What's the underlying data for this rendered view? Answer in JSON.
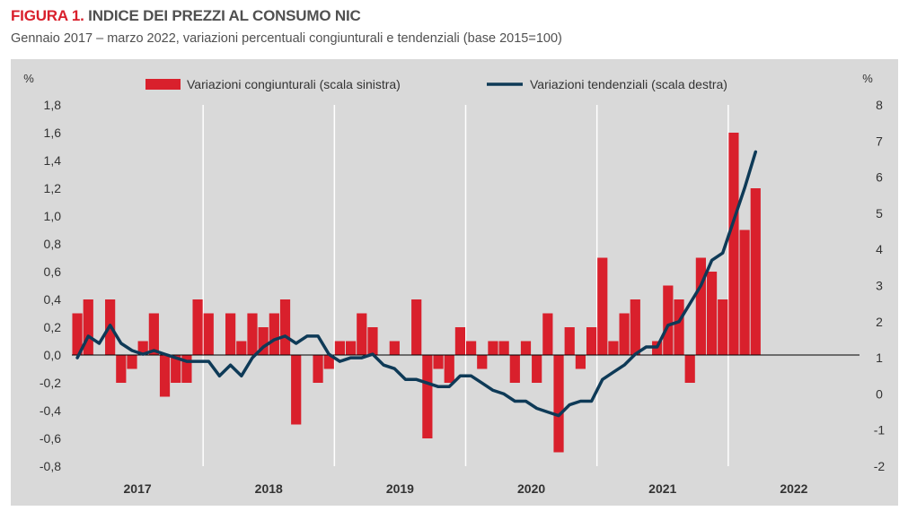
{
  "header": {
    "figure_label": "FIGURA 1.",
    "title": "INDICE DEI PREZZI AL CONSUMO NIC",
    "subtitle": "Gennaio 2017 – marzo 2022, variazioni percentuali congiunturali e tendenziali (base 2015=100)"
  },
  "colors": {
    "background": "#d9d9d9",
    "bars": "#d9202c",
    "line": "#0e3a57",
    "gridlines": "#ffffff",
    "text": "#333333"
  },
  "chart_data": {
    "type": "bar+line",
    "left_axis": {
      "unit": "%",
      "range": [
        -0.8,
        1.8
      ],
      "ticks": [
        "-0,8",
        "-0,6",
        "-0,4",
        "-0,2",
        "0,0",
        "0,2",
        "0,4",
        "0,6",
        "0,8",
        "1,0",
        "1,2",
        "1,4",
        "1,6",
        "1,8"
      ]
    },
    "right_axis": {
      "unit": "%",
      "range": [
        -2,
        8
      ],
      "ticks": [
        "-2",
        "-1",
        "0",
        "1",
        "2",
        "3",
        "4",
        "5",
        "6",
        "7",
        "8"
      ]
    },
    "x_categories": [
      "2017",
      "2018",
      "2019",
      "2020",
      "2021",
      "2022"
    ],
    "legend_position": "top",
    "grid": "vertical separators between years",
    "series": [
      {
        "name": "Variazioni congiunturali (scala sinistra)",
        "type": "bar",
        "axis": "left",
        "start": "2017-01",
        "values": [
          0.3,
          0.4,
          0.0,
          0.4,
          -0.2,
          -0.1,
          0.1,
          0.3,
          -0.3,
          -0.2,
          -0.2,
          0.4,
          0.3,
          0.0,
          0.3,
          0.1,
          0.3,
          0.2,
          0.3,
          0.4,
          -0.5,
          0.0,
          -0.2,
          -0.1,
          0.1,
          0.1,
          0.3,
          0.2,
          0.0,
          0.1,
          0.0,
          0.4,
          -0.6,
          -0.1,
          -0.2,
          0.2,
          0.1,
          -0.1,
          0.1,
          0.1,
          -0.2,
          0.1,
          -0.2,
          0.3,
          -0.7,
          0.2,
          -0.1,
          0.2,
          0.7,
          0.1,
          0.3,
          0.4,
          0.0,
          0.1,
          0.5,
          0.4,
          -0.2,
          0.7,
          0.6,
          0.4,
          1.6,
          0.9,
          1.2
        ]
      },
      {
        "name": "Variazioni tendenziali (scala destra)",
        "type": "line",
        "axis": "right",
        "start": "2017-01",
        "values": [
          1.0,
          1.6,
          1.4,
          1.9,
          1.4,
          1.2,
          1.1,
          1.2,
          1.1,
          1.0,
          0.9,
          0.9,
          0.9,
          0.5,
          0.8,
          0.5,
          1.0,
          1.3,
          1.5,
          1.6,
          1.4,
          1.6,
          1.6,
          1.1,
          0.9,
          1.0,
          1.0,
          1.1,
          0.8,
          0.7,
          0.4,
          0.4,
          0.3,
          0.2,
          0.2,
          0.5,
          0.5,
          0.3,
          0.1,
          0.0,
          -0.2,
          -0.2,
          -0.4,
          -0.5,
          -0.6,
          -0.3,
          -0.2,
          -0.2,
          0.4,
          0.6,
          0.8,
          1.1,
          1.3,
          1.3,
          1.9,
          2.0,
          2.5,
          3.0,
          3.7,
          3.9,
          4.8,
          5.7,
          6.7
        ]
      }
    ]
  }
}
